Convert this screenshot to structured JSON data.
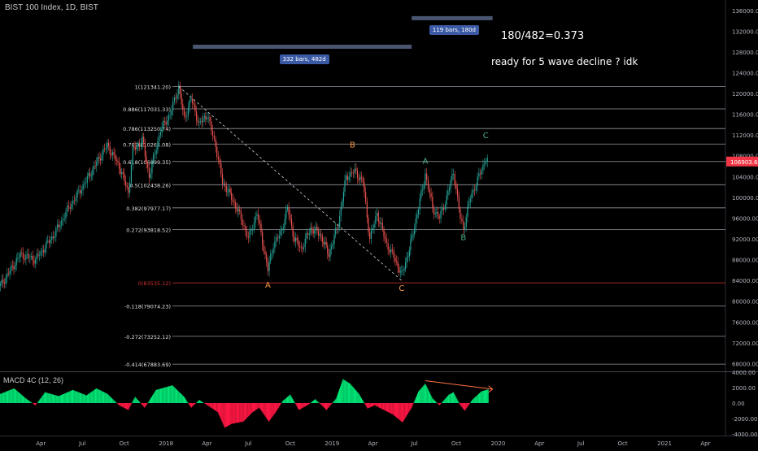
{
  "symbol": "BIST 100 Index, 1D, BIST",
  "macd_label": "MACD 4C (12, 26)",
  "annotations": {
    "ratio": "180/482=0.373",
    "question": "ready for 5 wave decline ? idk"
  },
  "ranges": [
    {
      "label": "332 bars, 482d",
      "start": "2018-03-01",
      "end": "2019-06-25",
      "y": 129000
    },
    {
      "label": "119 bars, 180d",
      "start": "2019-06-25",
      "end": "2019-12-20",
      "y": 134500
    }
  ],
  "chart_data": [
    {
      "type": "candlestick",
      "title": "BIST 100 Index, 1D, BIST",
      "ylim": [
        66500,
        138000
      ],
      "y_ticks": [
        "136000.00",
        "132000.00",
        "128000.00",
        "124000.00",
        "120000.00",
        "116000.00",
        "112000.00",
        "108000.00",
        "104000.00",
        "100000.00",
        "96000.00",
        "92000.00",
        "88000.00",
        "84000.00",
        "80000.00",
        "76000.00",
        "72000.00",
        "68000.00"
      ],
      "x_ticks": [
        {
          "label": "Apr",
          "date": "2017-04-01"
        },
        {
          "label": "Jul",
          "date": "2017-07-01"
        },
        {
          "label": "Oct",
          "date": "2017-10-01"
        },
        {
          "label": "2018",
          "date": "2018-01-01"
        },
        {
          "label": "Apr",
          "date": "2018-04-01"
        },
        {
          "label": "Jul",
          "date": "2018-07-01"
        },
        {
          "label": "Oct",
          "date": "2018-10-01"
        },
        {
          "label": "2019",
          "date": "2019-01-01"
        },
        {
          "label": "Apr",
          "date": "2019-04-01"
        },
        {
          "label": "Jul",
          "date": "2019-07-01"
        },
        {
          "label": "Oct",
          "date": "2019-10-01"
        },
        {
          "label": "2020",
          "date": "2020-01-01"
        },
        {
          "label": "Apr",
          "date": "2020-04-01"
        },
        {
          "label": "Jul",
          "date": "2020-07-01"
        },
        {
          "label": "Oct",
          "date": "2020-10-01"
        },
        {
          "label": "2021",
          "date": "2021-01-01"
        },
        {
          "label": "Apr",
          "date": "2021-04-01"
        }
      ],
      "last_price": "106903.68",
      "last_price_color": "#f23645",
      "price_path": [
        {
          "x": "2017-01-02",
          "y": 83000
        },
        {
          "x": "2017-02-15",
          "y": 89000
        },
        {
          "x": "2017-03-20",
          "y": 88000
        },
        {
          "x": "2017-05-01",
          "y": 93000
        },
        {
          "x": "2017-06-01",
          "y": 98000
        },
        {
          "x": "2017-06-20",
          "y": 100500
        },
        {
          "x": "2017-07-15",
          "y": 104000
        },
        {
          "x": "2017-08-10",
          "y": 108000
        },
        {
          "x": "2017-08-25",
          "y": 110000
        },
        {
          "x": "2017-09-20",
          "y": 106000
        },
        {
          "x": "2017-10-10",
          "y": 101000
        },
        {
          "x": "2017-10-20",
          "y": 109000
        },
        {
          "x": "2017-11-10",
          "y": 111000
        },
        {
          "x": "2017-11-25",
          "y": 104000
        },
        {
          "x": "2017-12-20",
          "y": 113000
        },
        {
          "x": "2018-01-10",
          "y": 116000
        },
        {
          "x": "2018-01-29",
          "y": 121341
        },
        {
          "x": "2018-02-10",
          "y": 115000
        },
        {
          "x": "2018-02-25",
          "y": 119000
        },
        {
          "x": "2018-03-15",
          "y": 114000
        },
        {
          "x": "2018-04-01",
          "y": 116000
        },
        {
          "x": "2018-04-20",
          "y": 110000
        },
        {
          "x": "2018-05-05",
          "y": 103000
        },
        {
          "x": "2018-05-25",
          "y": 100000
        },
        {
          "x": "2018-06-15",
          "y": 96000
        },
        {
          "x": "2018-07-01",
          "y": 92000
        },
        {
          "x": "2018-07-20",
          "y": 97000
        },
        {
          "x": "2018-08-13",
          "y": 86000
        },
        {
          "x": "2018-08-25",
          "y": 91000
        },
        {
          "x": "2018-09-10",
          "y": 93000
        },
        {
          "x": "2018-09-25",
          "y": 98000
        },
        {
          "x": "2018-10-10",
          "y": 92000
        },
        {
          "x": "2018-10-25",
          "y": 90000
        },
        {
          "x": "2018-11-15",
          "y": 94000
        },
        {
          "x": "2018-12-05",
          "y": 93000
        },
        {
          "x": "2018-12-25",
          "y": 89000
        },
        {
          "x": "2019-01-15",
          "y": 95000
        },
        {
          "x": "2019-02-01",
          "y": 104000
        },
        {
          "x": "2019-02-20",
          "y": 105000
        },
        {
          "x": "2019-03-10",
          "y": 103000
        },
        {
          "x": "2019-03-25",
          "y": 92000
        },
        {
          "x": "2019-04-10",
          "y": 97000
        },
        {
          "x": "2019-05-01",
          "y": 91000
        },
        {
          "x": "2019-05-20",
          "y": 88000
        },
        {
          "x": "2019-06-03",
          "y": 85000
        },
        {
          "x": "2019-06-20",
          "y": 90000
        },
        {
          "x": "2019-07-10",
          "y": 98000
        },
        {
          "x": "2019-07-25",
          "y": 104500
        },
        {
          "x": "2019-08-10",
          "y": 98000
        },
        {
          "x": "2019-08-25",
          "y": 96000
        },
        {
          "x": "2019-09-10",
          "y": 100000
        },
        {
          "x": "2019-09-25",
          "y": 105000
        },
        {
          "x": "2019-10-10",
          "y": 96000
        },
        {
          "x": "2019-10-17",
          "y": 94000
        },
        {
          "x": "2019-11-01",
          "y": 100000
        },
        {
          "x": "2019-11-20",
          "y": 104000
        },
        {
          "x": "2019-12-05",
          "y": 107500
        },
        {
          "x": "2019-12-12",
          "y": 106900
        }
      ],
      "fib_levels": [
        {
          "label": "1(121341.20)",
          "value": 121341.2
        },
        {
          "label": "0.886(117031.33)",
          "value": 117031.33
        },
        {
          "label": "0.786(113250.74)",
          "value": 113250.74
        },
        {
          "label": "0.707(110264.08)",
          "value": 110264.08
        },
        {
          "label": "0.618(106899.35)",
          "value": 106899.35
        },
        {
          "label": "0.5(102438.26)",
          "value": 102438.26
        },
        {
          "label": "0.382(97977.17)",
          "value": 97977.17
        },
        {
          "label": "0.272(93818.52)",
          "value": 93818.52
        },
        {
          "label": "0(83535.12)",
          "value": 83535.12
        },
        {
          "label": "-0.118(79074.23)",
          "value": 79074.23
        },
        {
          "label": "-0.272(73252.12)",
          "value": 73252.12
        },
        {
          "label": "-0.414(67883.69)",
          "value": 67883.69
        }
      ],
      "fib_line_color": "#9598a1",
      "zero_level_color": "#d32f2f",
      "trendline": [
        {
          "x": "2018-01-29",
          "y": 121341
        },
        {
          "x": "2019-06-03",
          "y": 84000
        }
      ],
      "wave_labels": [
        {
          "text": "A",
          "x": "2018-08-13",
          "y": 82600,
          "color": "#ff9c47"
        },
        {
          "text": "B",
          "x": "2019-02-15",
          "y": 109600,
          "color": "#ff9c47"
        },
        {
          "text": "C",
          "x": "2019-06-03",
          "y": 82000,
          "color": "#ff9c47"
        },
        {
          "text": "A",
          "x": "2019-07-25",
          "y": 106500,
          "color": "#4caf89"
        },
        {
          "text": "B",
          "x": "2019-10-17",
          "y": 91800,
          "color": "#4caf89"
        },
        {
          "text": "C",
          "x": "2019-12-05",
          "y": 111400,
          "color": "#4caf89"
        }
      ]
    },
    {
      "type": "histogram",
      "title": "MACD 4C (12, 26)",
      "ylim": [
        -4000,
        4000
      ],
      "y_ticks": [
        "4000.00",
        "2000.00",
        "0.00",
        "-2000.00",
        "-4000.00"
      ],
      "positive_color": "#00e676",
      "negative_color": "#ff1744",
      "macd_path": [
        {
          "x": "2017-01-02",
          "y": 1200
        },
        {
          "x": "2017-02-01",
          "y": 1900
        },
        {
          "x": "2017-03-01",
          "y": 500
        },
        {
          "x": "2017-03-20",
          "y": -300
        },
        {
          "x": "2017-04-10",
          "y": 1400
        },
        {
          "x": "2017-05-10",
          "y": 900
        },
        {
          "x": "2017-06-10",
          "y": 1700
        },
        {
          "x": "2017-07-10",
          "y": 1000
        },
        {
          "x": "2017-08-01",
          "y": 1900
        },
        {
          "x": "2017-08-25",
          "y": 1200
        },
        {
          "x": "2017-09-20",
          "y": -300
        },
        {
          "x": "2017-10-10",
          "y": -900
        },
        {
          "x": "2017-10-25",
          "y": 800
        },
        {
          "x": "2017-11-15",
          "y": -600
        },
        {
          "x": "2017-12-10",
          "y": 1700
        },
        {
          "x": "2018-01-15",
          "y": 2300
        },
        {
          "x": "2018-02-10",
          "y": 800
        },
        {
          "x": "2018-02-25",
          "y": -600
        },
        {
          "x": "2018-03-15",
          "y": 400
        },
        {
          "x": "2018-04-05",
          "y": -400
        },
        {
          "x": "2018-04-25",
          "y": -1200
        },
        {
          "x": "2018-05-10",
          "y": -3200
        },
        {
          "x": "2018-05-25",
          "y": -2700
        },
        {
          "x": "2018-06-20",
          "y": -2400
        },
        {
          "x": "2018-07-10",
          "y": -1200
        },
        {
          "x": "2018-07-25",
          "y": -600
        },
        {
          "x": "2018-08-15",
          "y": -2400
        },
        {
          "x": "2018-08-30",
          "y": -1200
        },
        {
          "x": "2018-09-15",
          "y": 300
        },
        {
          "x": "2018-10-01",
          "y": 1100
        },
        {
          "x": "2018-10-20",
          "y": -900
        },
        {
          "x": "2018-11-10",
          "y": -200
        },
        {
          "x": "2018-11-25",
          "y": 500
        },
        {
          "x": "2018-12-20",
          "y": -900
        },
        {
          "x": "2019-01-10",
          "y": 600
        },
        {
          "x": "2019-01-25",
          "y": 3100
        },
        {
          "x": "2019-02-10",
          "y": 2500
        },
        {
          "x": "2019-03-01",
          "y": 1200
        },
        {
          "x": "2019-03-20",
          "y": -700
        },
        {
          "x": "2019-04-05",
          "y": -300
        },
        {
          "x": "2019-04-25",
          "y": -900
        },
        {
          "x": "2019-05-15",
          "y": -1500
        },
        {
          "x": "2019-06-05",
          "y": -2500
        },
        {
          "x": "2019-06-25",
          "y": -600
        },
        {
          "x": "2019-07-10",
          "y": 1500
        },
        {
          "x": "2019-07-25",
          "y": 2500
        },
        {
          "x": "2019-08-10",
          "y": 600
        },
        {
          "x": "2019-08-25",
          "y": -300
        },
        {
          "x": "2019-09-15",
          "y": 1100
        },
        {
          "x": "2019-09-25",
          "y": 1400
        },
        {
          "x": "2019-10-10",
          "y": -300
        },
        {
          "x": "2019-10-20",
          "y": -1000
        },
        {
          "x": "2019-11-05",
          "y": 400
        },
        {
          "x": "2019-11-25",
          "y": 1500
        },
        {
          "x": "2019-12-12",
          "y": 1800
        }
      ],
      "divergence_line": [
        {
          "x": "2019-07-25",
          "y": 2900
        },
        {
          "x": "2019-12-20",
          "y": 1800
        }
      ],
      "divergence_color": "#ff7043"
    }
  ]
}
